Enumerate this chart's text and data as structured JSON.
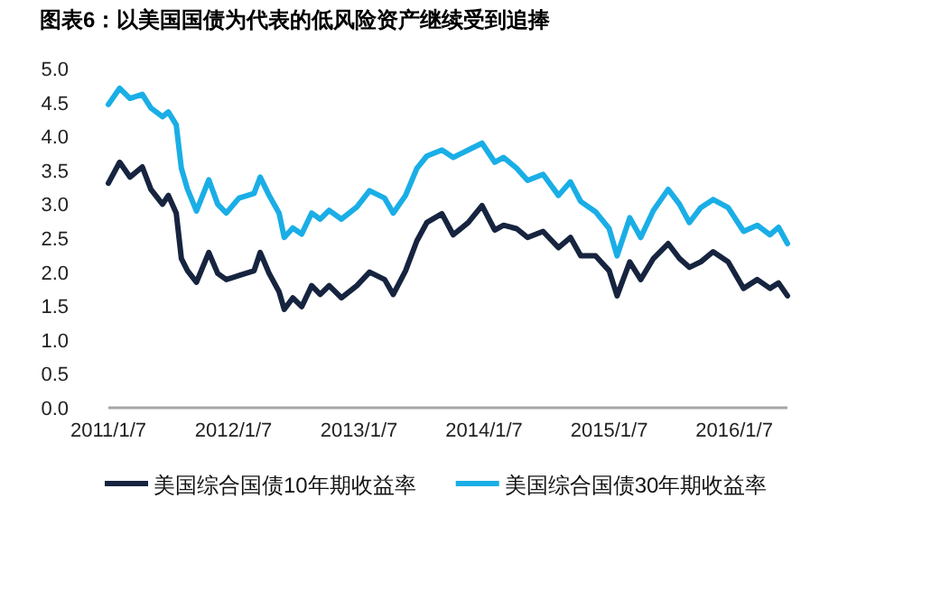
{
  "chart_data": {
    "type": "line",
    "title": "图表6：以美国国债为代表的低风险资产继续受到追捧",
    "x": [
      "2011-01-07",
      "2011-02-09",
      "2011-03-11",
      "2011-04-16",
      "2011-05-11",
      "2011-06-14",
      "2011-07-01",
      "2011-07-24",
      "2011-08-08",
      "2011-08-26",
      "2011-09-21",
      "2011-10-27",
      "2011-11-22",
      "2011-12-17",
      "2012-01-23",
      "2012-03-07",
      "2012-03-25",
      "2012-04-20",
      "2012-05-19",
      "2012-06-03",
      "2012-06-28",
      "2012-07-24",
      "2012-08-22",
      "2012-09-16",
      "2012-10-12",
      "2012-11-17",
      "2013-01-01",
      "2013-02-07",
      "2013-03-23",
      "2013-04-17",
      "2013-05-23",
      "2013-06-25",
      "2013-07-24",
      "2013-09-06",
      "2013-10-09",
      "2013-11-22",
      "2014-01-01",
      "2014-02-07",
      "2014-03-05",
      "2014-04-12",
      "2014-05-14",
      "2014-06-28",
      "2014-08-12",
      "2014-09-16",
      "2014-10-16",
      "2014-11-28",
      "2015-01-07",
      "2015-01-30",
      "2015-03-08",
      "2015-04-09",
      "2015-05-16",
      "2015-06-28",
      "2015-07-31",
      "2015-08-29",
      "2015-10-01",
      "2015-11-06",
      "2015-12-20",
      "2016-02-03",
      "2016-03-14",
      "2016-04-20",
      "2016-05-15",
      "2016-06-10"
    ],
    "series": [
      {
        "name": "美国综合国债10年期收益率",
        "color": "#16243f",
        "values": [
          3.31,
          3.62,
          3.4,
          3.55,
          3.22,
          3.0,
          3.13,
          2.87,
          2.2,
          2.02,
          1.85,
          2.29,
          1.98,
          1.89,
          1.95,
          2.02,
          2.29,
          1.98,
          1.71,
          1.45,
          1.62,
          1.49,
          1.8,
          1.67,
          1.8,
          1.62,
          1.8,
          2.0,
          1.89,
          1.67,
          2.02,
          2.46,
          2.73,
          2.86,
          2.55,
          2.73,
          2.98,
          2.62,
          2.69,
          2.64,
          2.51,
          2.6,
          2.36,
          2.51,
          2.24,
          2.24,
          2.02,
          1.65,
          2.15,
          1.89,
          2.2,
          2.42,
          2.2,
          2.07,
          2.15,
          2.3,
          2.15,
          1.76,
          1.89,
          1.76,
          1.84,
          1.65
        ]
      },
      {
        "name": "美国综合国债30年期收益率",
        "color": "#1aaee6",
        "values": [
          4.47,
          4.71,
          4.56,
          4.62,
          4.42,
          4.29,
          4.36,
          4.17,
          3.53,
          3.22,
          2.9,
          3.36,
          3.0,
          2.87,
          3.09,
          3.16,
          3.4,
          3.13,
          2.87,
          2.51,
          2.65,
          2.56,
          2.87,
          2.78,
          2.91,
          2.78,
          2.96,
          3.2,
          3.09,
          2.87,
          3.13,
          3.53,
          3.71,
          3.8,
          3.69,
          3.8,
          3.9,
          3.62,
          3.69,
          3.53,
          3.35,
          3.44,
          3.13,
          3.33,
          3.04,
          2.89,
          2.64,
          2.24,
          2.8,
          2.51,
          2.91,
          3.22,
          3.0,
          2.73,
          2.95,
          3.07,
          2.95,
          2.6,
          2.69,
          2.55,
          2.66,
          2.42
        ]
      }
    ],
    "xlim": [
      "2011-01-07",
      "2016-06-10"
    ],
    "xticks": [
      {
        "value": "2011-01-07",
        "label": "2011/1/7"
      },
      {
        "value": "2012-01-07",
        "label": "2012/1/7"
      },
      {
        "value": "2013-01-07",
        "label": "2013/1/7"
      },
      {
        "value": "2014-01-07",
        "label": "2014/1/7"
      },
      {
        "value": "2015-01-07",
        "label": "2015/1/7"
      },
      {
        "value": "2016-01-07",
        "label": "2016/1/7"
      }
    ],
    "ylim": [
      0,
      5
    ],
    "yticks": [
      {
        "value": 0,
        "label": "0.0"
      },
      {
        "value": 0.5,
        "label": "0.5"
      },
      {
        "value": 1,
        "label": "1.0"
      },
      {
        "value": 1.5,
        "label": "1.5"
      },
      {
        "value": 2,
        "label": "2.0"
      },
      {
        "value": 2.5,
        "label": "2.5"
      },
      {
        "value": 3,
        "label": "3.0"
      },
      {
        "value": 3.5,
        "label": "3.5"
      },
      {
        "value": 4,
        "label": "4.0"
      },
      {
        "value": 4.5,
        "label": "4.5"
      },
      {
        "value": 5,
        "label": "5.0"
      }
    ],
    "grid": false,
    "legend": "bottom"
  }
}
